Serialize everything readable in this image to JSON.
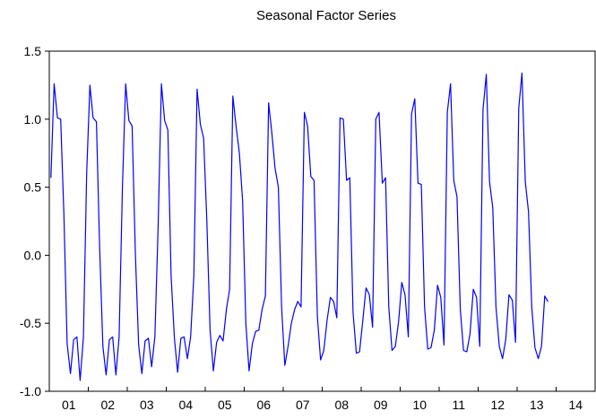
{
  "chart_data": {
    "type": "line",
    "title": "Seasonal Factor Series",
    "xlabel": "",
    "ylabel": "",
    "ylim": [
      -1.0,
      1.5
    ],
    "y_ticks": [
      "1.5",
      "1.0",
      "0.5",
      "0.0",
      "-0.5",
      "-1.0"
    ],
    "x_ticks": [
      "01",
      "02",
      "03",
      "04",
      "05",
      "06",
      "07",
      "08",
      "09",
      "10",
      "11",
      "12",
      "13",
      "14"
    ],
    "x_start": "2001-01",
    "frequency": "monthly",
    "grid": false,
    "line_color": "#0000ff",
    "series": [
      {
        "values": [
          0.57,
          1.26,
          1.01,
          1.0,
          0.3,
          -0.65,
          -0.87,
          -0.62,
          -0.6,
          -0.92,
          -0.6,
          0.6,
          1.25,
          1.01,
          0.98,
          0.05,
          -0.67,
          -0.88,
          -0.62,
          -0.6,
          -0.88,
          -0.6,
          0.5,
          1.26,
          0.99,
          0.95,
          0.0,
          -0.66,
          -0.87,
          -0.63,
          -0.61,
          -0.82,
          -0.6,
          0.2,
          1.26,
          0.99,
          0.92,
          -0.15,
          -0.61,
          -0.86,
          -0.61,
          -0.6,
          -0.76,
          -0.6,
          -0.15,
          1.22,
          0.96,
          0.86,
          0.25,
          -0.55,
          -0.85,
          -0.64,
          -0.59,
          -0.63,
          -0.4,
          -0.25,
          1.17,
          0.95,
          0.75,
          0.4,
          -0.5,
          -0.85,
          -0.65,
          -0.56,
          -0.55,
          -0.4,
          -0.3,
          1.12,
          0.9,
          0.64,
          0.5,
          -0.38,
          -0.81,
          -0.67,
          -0.5,
          -0.4,
          -0.34,
          -0.38,
          1.05,
          0.95,
          0.58,
          0.55,
          -0.45,
          -0.77,
          -0.7,
          -0.48,
          -0.31,
          -0.34,
          -0.46,
          1.01,
          1.0,
          0.55,
          0.57,
          -0.42,
          -0.72,
          -0.71,
          -0.48,
          -0.24,
          -0.29,
          -0.53,
          1.0,
          1.05,
          0.53,
          0.57,
          -0.38,
          -0.7,
          -0.67,
          -0.49,
          -0.2,
          -0.29,
          -0.6,
          1.04,
          1.15,
          0.53,
          0.52,
          -0.38,
          -0.69,
          -0.68,
          -0.55,
          -0.22,
          -0.31,
          -0.66,
          1.05,
          1.26,
          0.55,
          0.43,
          -0.4,
          -0.7,
          -0.71,
          -0.58,
          -0.25,
          -0.31,
          -0.67,
          1.07,
          1.33,
          0.54,
          0.35,
          -0.38,
          -0.67,
          -0.76,
          -0.62,
          -0.29,
          -0.33,
          -0.64,
          1.08,
          1.34,
          0.54,
          0.32,
          -0.38,
          -0.68,
          -0.76,
          -0.67,
          -0.3,
          -0.34
        ]
      }
    ]
  }
}
